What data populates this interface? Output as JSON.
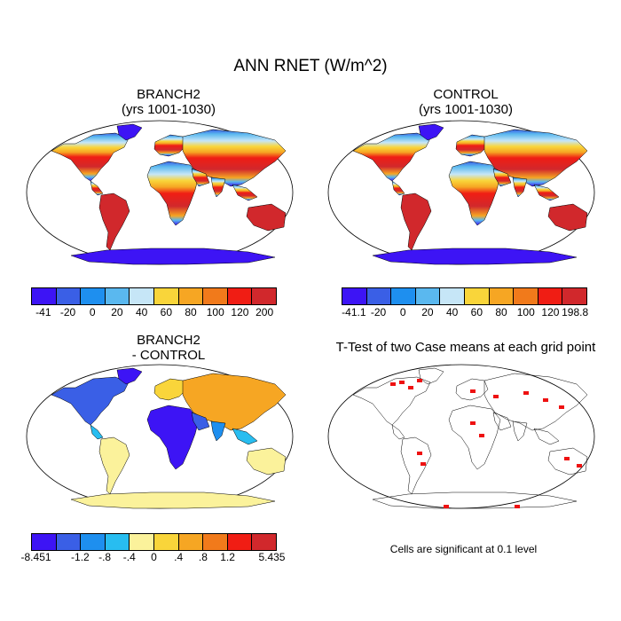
{
  "title": "ANN RNET (W/m^2)",
  "panels": {
    "branch2": {
      "title_line1": "BRANCH2",
      "title_line2": "(yrs 1001-1030)"
    },
    "control": {
      "title_line1": "CONTROL",
      "title_line2": "(yrs 1001-1030)"
    },
    "diff": {
      "title_line1": "BRANCH2",
      "title_line2": "- CONTROL"
    },
    "ttest": {
      "title": "T-Test of two Case means at each grid point",
      "note": "Cells are significant at 0.1 level"
    }
  },
  "colorbars": {
    "branch2": {
      "colors": [
        "#3d14f5",
        "#3a5fe6",
        "#1e8fef",
        "#5ab8ef",
        "#c6e6f7",
        "#f9d53a",
        "#f6a623",
        "#f17a1b",
        "#f01d14",
        "#d1282c"
      ],
      "labels": [
        "-41",
        "-20",
        "0",
        "20",
        "40",
        "60",
        "80",
        "100",
        "120",
        "200"
      ]
    },
    "control": {
      "colors": [
        "#3d14f5",
        "#3a5fe6",
        "#1e8fef",
        "#5ab8ef",
        "#c6e6f7",
        "#f9d53a",
        "#f6a623",
        "#f17a1b",
        "#f01d14",
        "#d1282c"
      ],
      "labels": [
        "-41.1",
        "-20",
        "0",
        "20",
        "40",
        "60",
        "80",
        "100",
        "120",
        "198.8"
      ]
    },
    "diff": {
      "colors": [
        "#3d14f5",
        "#3a5fe6",
        "#1e8fef",
        "#28bdf0",
        "#fbf29b",
        "#f9d53a",
        "#f6a623",
        "#f17a1b",
        "#f01d14",
        "#d1282c"
      ],
      "labels": [
        "-8.451",
        "-1.2",
        "-.8",
        "-.4",
        "0",
        ".4",
        ".8",
        "1.2",
        "5.435"
      ]
    }
  }
}
